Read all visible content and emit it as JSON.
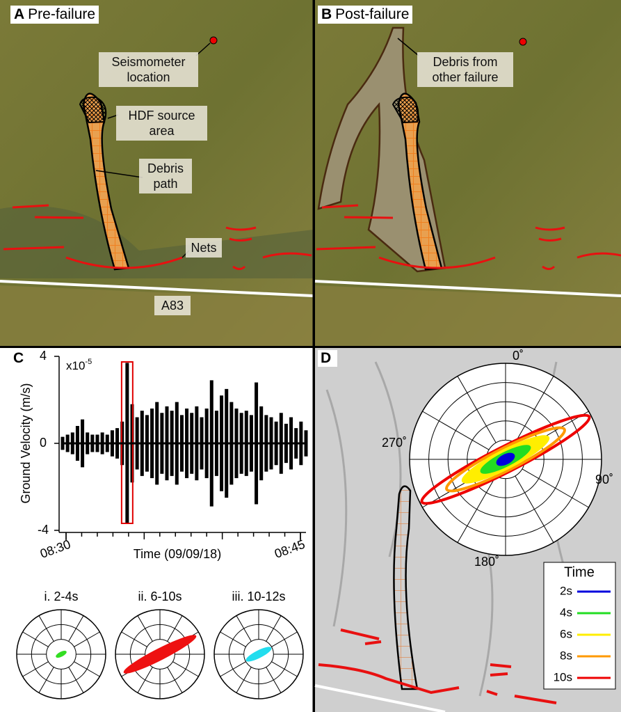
{
  "panel_a": {
    "letter": "A",
    "title": "Pre-failure",
    "annotations": [
      "Seismometer location",
      "HDF source area",
      "Debris path",
      "Nets",
      "A83"
    ]
  },
  "panel_b": {
    "letter": "B",
    "title": "Post-failure",
    "annotations": [
      "Debris from other failure"
    ]
  },
  "panel_c": {
    "letter": "C",
    "ylabel": "Ground Velocity (m/s)",
    "xlabel": "Time (09/09/18)",
    "y_multiplier": {
      "base": "x10",
      "exponent": "-5"
    },
    "ylim": [
      -4,
      4
    ],
    "yticks": [
      -4,
      0,
      4
    ],
    "xticks": [
      {
        "value": 0,
        "label": "08:30"
      },
      {
        "value": 15,
        "label": "08:45"
      }
    ],
    "envelope": [
      0.3,
      0.4,
      0.5,
      0.8,
      1.1,
      0.5,
      0.4,
      0.4,
      0.5,
      0.4,
      0.6,
      0.7,
      1.0,
      3.7,
      1.8,
      1.2,
      1.5,
      1.3,
      1.6,
      1.9,
      1.4,
      1.7,
      1.5,
      1.9,
      1.3,
      1.6,
      1.4,
      1.7,
      1.2,
      1.6,
      2.9,
      1.5,
      2.2,
      2.5,
      1.9,
      1.6,
      1.4,
      1.5,
      1.3,
      2.8,
      1.7,
      1.3,
      1.2,
      1.0,
      1.4,
      0.9,
      1.2,
      0.7,
      1.0,
      0.6
    ],
    "trace_color": "#000000",
    "highlight_color": "#e00000",
    "small_roses": [
      {
        "label": "i. 2-4s",
        "color": "#33dd22"
      },
      {
        "label": "ii. 6-10s",
        "color": "#ee1111"
      },
      {
        "label": "iii. 10-12s",
        "color": "#22ddee"
      }
    ]
  },
  "panel_d": {
    "letter": "D",
    "directions": [
      "0˚",
      "90˚",
      "180˚",
      "270˚"
    ],
    "legend": {
      "title": "Time",
      "entries": [
        {
          "label": "2s",
          "color": "#0000dd"
        },
        {
          "label": "4s",
          "color": "#22dd22"
        },
        {
          "label": "6s",
          "color": "#ffee00"
        },
        {
          "label": "8s",
          "color": "#ff9900"
        },
        {
          "label": "10s",
          "color": "#ee0000"
        }
      ]
    }
  }
}
